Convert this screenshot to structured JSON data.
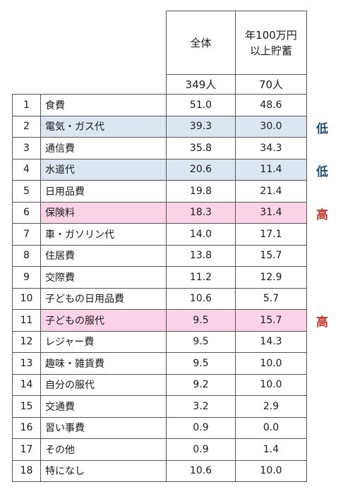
{
  "header": {
    "col_all": "全体",
    "col_rich_line1": "年100万円",
    "col_rich_line2": "以上貯蓄",
    "count_all": "349人",
    "count_rich": "70人"
  },
  "rows": [
    {
      "rank": "1",
      "item": "食費",
      "all": "51.0",
      "rich": "48.6",
      "tag": ""
    },
    {
      "rank": "2",
      "item": "電気・ガス代",
      "all": "39.3",
      "rich": "30.0",
      "tag": "低"
    },
    {
      "rank": "3",
      "item": "通信費",
      "all": "35.8",
      "rich": "34.3",
      "tag": ""
    },
    {
      "rank": "4",
      "item": "水道代",
      "all": "20.6",
      "rich": "11.4",
      "tag": "低"
    },
    {
      "rank": "5",
      "item": "日用品費",
      "all": "19.8",
      "rich": "21.4",
      "tag": ""
    },
    {
      "rank": "6",
      "item": "保険料",
      "all": "18.3",
      "rich": "31.4",
      "tag": "高"
    },
    {
      "rank": "7",
      "item": "車・ガソリン代",
      "all": "14.0",
      "rich": "17.1",
      "tag": ""
    },
    {
      "rank": "8",
      "item": "住居費",
      "all": "13.8",
      "rich": "15.7",
      "tag": ""
    },
    {
      "rank": "9",
      "item": "交際費",
      "all": "11.2",
      "rich": "12.9",
      "tag": ""
    },
    {
      "rank": "10",
      "item": "子どもの日用品費",
      "all": "10.6",
      "rich": "5.7",
      "tag": ""
    },
    {
      "rank": "11",
      "item": "子どもの服代",
      "all": "9.5",
      "rich": "15.7",
      "tag": "高"
    },
    {
      "rank": "12",
      "item": "レジャー費",
      "all": "9.5",
      "rich": "14.3",
      "tag": ""
    },
    {
      "rank": "13",
      "item": "趣味・雑貨費",
      "all": "9.5",
      "rich": "10.0",
      "tag": ""
    },
    {
      "rank": "14",
      "item": "自分の服代",
      "all": "9.2",
      "rich": "10.0",
      "tag": ""
    },
    {
      "rank": "15",
      "item": "交通費",
      "all": "3.2",
      "rich": "2.9",
      "tag": ""
    },
    {
      "rank": "16",
      "item": "習い事費",
      "all": "0.9",
      "rich": "0.0",
      "tag": ""
    },
    {
      "rank": "17",
      "item": "その他",
      "all": "0.9",
      "rich": "1.4",
      "tag": ""
    },
    {
      "rank": "18",
      "item": "特になし",
      "all": "10.6",
      "rich": "10.0",
      "tag": ""
    }
  ],
  "colors": {
    "low_highlight": "#dce6f1",
    "high_highlight": "#fbd3e6",
    "low_text": "#1f4e79",
    "high_text": "#c0392b"
  }
}
